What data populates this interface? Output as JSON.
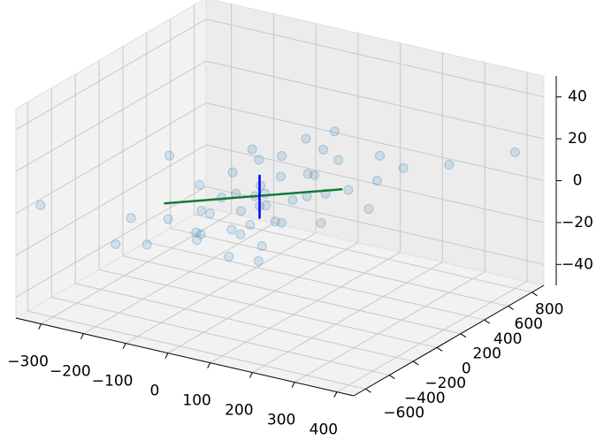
{
  "chart_data": {
    "type": "scatter3d",
    "xlim": [
      -360,
      440
    ],
    "ylim": [
      -700,
      900
    ],
    "zlim": [
      -50,
      50
    ],
    "xticks": [
      {
        "value": -300,
        "label": "−300"
      },
      {
        "value": -200,
        "label": "−200"
      },
      {
        "value": -100,
        "label": "−100"
      },
      0,
      100,
      200,
      300,
      400
    ],
    "yticks": [
      {
        "value": -600,
        "label": "−600"
      },
      {
        "value": -400,
        "label": "−400"
      },
      {
        "value": -200,
        "label": "−200"
      },
      0,
      200,
      400,
      600,
      800
    ],
    "zticks": [
      {
        "value": -40,
        "label": "−40"
      },
      {
        "value": -20,
        "label": "−20"
      },
      0,
      20,
      40
    ],
    "grid": true,
    "color": "#1f77b4",
    "x": [
      -200,
      -150,
      -120,
      -100,
      -90,
      -80,
      -60,
      -50,
      -40,
      -30,
      -20,
      -10,
      0,
      10,
      20,
      30,
      40,
      50,
      60,
      70,
      80,
      100,
      120,
      150,
      180,
      200,
      250,
      300,
      -250,
      -180,
      -70,
      -35,
      15,
      45,
      90,
      130,
      -110,
      -55,
      5,
      65,
      110,
      160,
      -140,
      -25,
      35,
      85,
      -330,
      400,
      220,
      -5
    ],
    "y": [
      -300,
      100,
      -450,
      200,
      -100,
      350,
      -250,
      50,
      400,
      -350,
      150,
      -50,
      250,
      -200,
      0,
      500,
      -150,
      300,
      -400,
      100,
      450,
      -100,
      200,
      550,
      -50,
      350,
      100,
      600,
      200,
      -500,
      0,
      -300,
      650,
      -250,
      150,
      -400,
      400,
      -150,
      100,
      300,
      -300,
      250,
      -200,
      550,
      0,
      -100,
      -600,
      800,
      500,
      50
    ],
    "z": [
      -8,
      -3,
      -12,
      2,
      -6,
      4,
      -10,
      -1,
      6,
      -9,
      1,
      -4,
      3,
      -7,
      -2,
      9,
      -5,
      5,
      -11,
      0,
      8,
      -3,
      2,
      10,
      -1,
      7,
      4,
      11,
      3,
      -13,
      -2,
      -8,
      12,
      -6,
      1,
      -10,
      6,
      -4,
      0,
      5,
      -7,
      4,
      -9,
      10,
      -1,
      -3,
      2,
      15,
      9,
      0
    ],
    "lines": [
      {
        "color": "#117a3a",
        "x": [
          -150,
          160
        ],
        "y": [
          -200,
          200
        ],
        "z": [
          -2,
          6
        ]
      },
      {
        "color": "#0000ff",
        "x": [
          20,
          20
        ],
        "y": [
          0,
          0
        ],
        "z": [
          -8,
          13
        ]
      }
    ]
  }
}
